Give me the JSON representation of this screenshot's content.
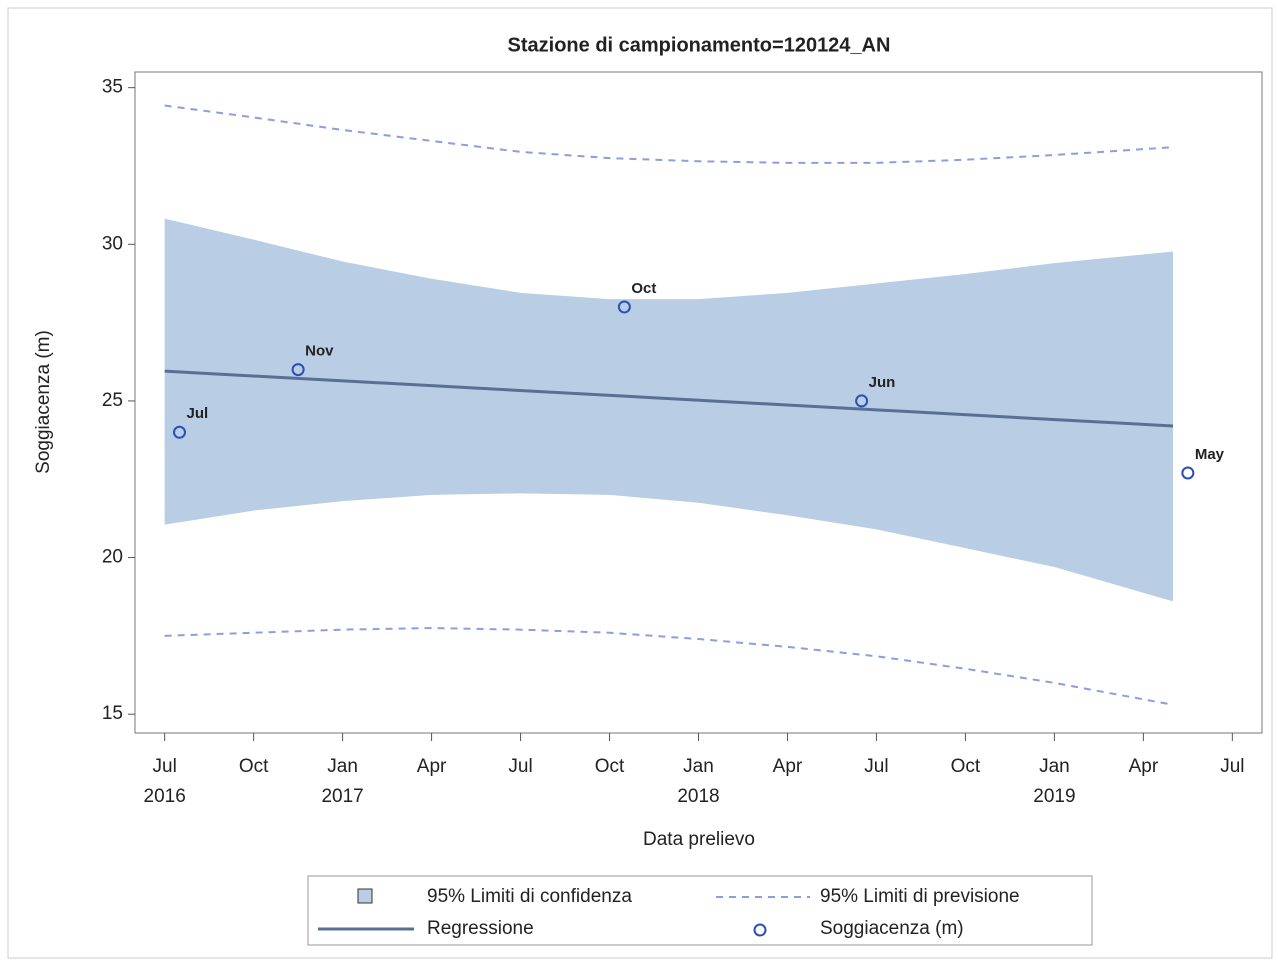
{
  "chart_data": {
    "type": "line",
    "title": "Stazione di campionamento=120124_AN",
    "xlabel": "Data prelievo",
    "ylabel": "Soggiacenza (m)",
    "xlim": [
      "2016-06",
      "2019-08"
    ],
    "ylim": [
      14.4,
      35.5
    ],
    "yticks": [
      15,
      20,
      25,
      30,
      35
    ],
    "xticks": [
      {
        "value": "2016-07",
        "label": "Jul"
      },
      {
        "value": "2016-10",
        "label": "Oct"
      },
      {
        "value": "2017-01",
        "label": "Jan"
      },
      {
        "value": "2017-04",
        "label": "Apr"
      },
      {
        "value": "2017-07",
        "label": "Jul"
      },
      {
        "value": "2017-10",
        "label": "Oct"
      },
      {
        "value": "2018-01",
        "label": "Jan"
      },
      {
        "value": "2018-04",
        "label": "Apr"
      },
      {
        "value": "2018-07",
        "label": "Jul"
      },
      {
        "value": "2018-10",
        "label": "Oct"
      },
      {
        "value": "2019-01",
        "label": "Jan"
      },
      {
        "value": "2019-04",
        "label": "Apr"
      },
      {
        "value": "2019-07",
        "label": "Jul"
      }
    ],
    "x_year_labels": [
      {
        "value": "2016-07",
        "label": "2016"
      },
      {
        "value": "2017-01",
        "label": "2017"
      },
      {
        "value": "2018-01",
        "label": "2018"
      },
      {
        "value": "2019-01",
        "label": "2019"
      }
    ],
    "band": {
      "name": "95% Limiti di confidenza",
      "color": "#b9cde5",
      "x": [
        "2016-07",
        "2016-10",
        "2017-01",
        "2017-04",
        "2017-07",
        "2017-10",
        "2018-01",
        "2018-04",
        "2018-07",
        "2018-10",
        "2019-01",
        "2019-05"
      ],
      "upper": [
        30.82,
        30.15,
        29.45,
        28.9,
        28.45,
        28.25,
        28.25,
        28.45,
        28.75,
        29.05,
        29.4,
        29.77
      ],
      "lower": [
        21.05,
        21.5,
        21.8,
        22.0,
        22.05,
        22.0,
        21.75,
        21.35,
        20.9,
        20.3,
        19.7,
        18.6
      ]
    },
    "prediction": {
      "name": "95% Limiti di previsione",
      "color": "#8a9fdc",
      "x": [
        "2016-07",
        "2016-10",
        "2017-01",
        "2017-04",
        "2017-07",
        "2017-10",
        "2018-01",
        "2018-04",
        "2018-07",
        "2018-10",
        "2019-01",
        "2019-05"
      ],
      "upper": [
        34.43,
        34.05,
        33.65,
        33.3,
        32.95,
        32.75,
        32.65,
        32.6,
        32.6,
        32.7,
        32.85,
        33.1
      ],
      "lower": [
        17.5,
        17.6,
        17.7,
        17.75,
        17.7,
        17.6,
        17.4,
        17.15,
        16.85,
        16.45,
        16.0,
        15.3
      ]
    },
    "regression": {
      "name": "Regressione",
      "color": "#5a6f94",
      "x": [
        "2016-07",
        "2019-05"
      ],
      "values": [
        25.95,
        24.2
      ]
    },
    "series": [
      {
        "name": "Soggiacenza (m)",
        "color": "#2a4fb5",
        "x": [
          "2016-07",
          "2016-11",
          "2017-10",
          "2018-06",
          "2019-05"
        ],
        "values": [
          24.0,
          26.0,
          28.0,
          25.0,
          22.7
        ],
        "point_labels": [
          "Jul",
          "Nov",
          "Oct",
          "Jun",
          "May"
        ]
      }
    ]
  }
}
